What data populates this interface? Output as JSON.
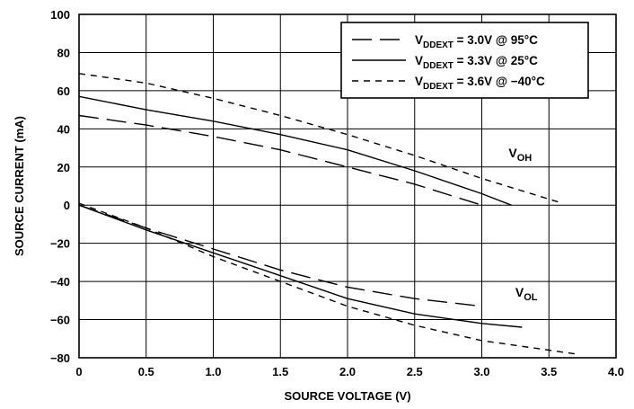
{
  "chart_data": {
    "type": "line",
    "title": "",
    "xlabel": "SOURCE VOLTAGE (V)",
    "ylabel": "SOURCE CURRENT (mA)",
    "xlim": [
      0,
      4.0
    ],
    "ylim": [
      -80,
      100
    ],
    "x_ticks": [
      "0",
      "0.5",
      "1.0",
      "1.5",
      "2.0",
      "2.5",
      "3.0",
      "3.5",
      "4.0"
    ],
    "y_ticks": [
      "100",
      "80",
      "60",
      "40",
      "20",
      "0",
      "-20",
      "-40",
      "-60",
      "-80"
    ],
    "grid": true,
    "legend_position": "top-right",
    "legend": [
      {
        "prefix": "V",
        "sub": "DDEXT",
        "suffix": " = 3.0V @ 95°C",
        "dash": "long-dash"
      },
      {
        "prefix": "V",
        "sub": "DDEXT",
        "suffix": " = 3.3V @ 25°C",
        "dash": "solid"
      },
      {
        "prefix": "V",
        "sub": "DDEXT",
        "suffix": " = 3.6V @ −40°C",
        "dash": "short-dash"
      }
    ],
    "annotations": [
      {
        "prefix": "V",
        "sub": "OH",
        "x": 3.2,
        "y": 25
      },
      {
        "prefix": "V",
        "sub": "OL",
        "x": 3.25,
        "y": -48
      }
    ],
    "series": [
      {
        "legend_index": 0,
        "group": "VOH",
        "dash": "long-dash",
        "points": [
          [
            0,
            47
          ],
          [
            0.5,
            42
          ],
          [
            1.0,
            36
          ],
          [
            1.5,
            29
          ],
          [
            2.0,
            20
          ],
          [
            2.5,
            11
          ],
          [
            3.0,
            0
          ]
        ]
      },
      {
        "legend_index": 1,
        "group": "VOH",
        "dash": "solid",
        "points": [
          [
            0,
            57
          ],
          [
            0.5,
            50
          ],
          [
            1.0,
            44
          ],
          [
            1.5,
            37
          ],
          [
            2.0,
            29
          ],
          [
            2.5,
            18
          ],
          [
            3.0,
            6
          ],
          [
            3.22,
            0
          ]
        ]
      },
      {
        "legend_index": 2,
        "group": "VOH",
        "dash": "short-dash",
        "points": [
          [
            0,
            69
          ],
          [
            0.5,
            64
          ],
          [
            1.0,
            56
          ],
          [
            1.5,
            47
          ],
          [
            2.0,
            37
          ],
          [
            2.5,
            26
          ],
          [
            3.0,
            14
          ],
          [
            3.6,
            1
          ]
        ]
      },
      {
        "legend_index": 0,
        "group": "VOL",
        "dash": "long-dash",
        "points": [
          [
            0,
            0
          ],
          [
            0.5,
            -12
          ],
          [
            1.0,
            -23
          ],
          [
            1.5,
            -34
          ],
          [
            2.0,
            -43
          ],
          [
            2.5,
            -49
          ],
          [
            3.0,
            -53
          ]
        ]
      },
      {
        "legend_index": 1,
        "group": "VOL",
        "dash": "solid",
        "points": [
          [
            0,
            0
          ],
          [
            0.5,
            -13
          ],
          [
            1.0,
            -25
          ],
          [
            1.5,
            -37
          ],
          [
            2.0,
            -49
          ],
          [
            2.5,
            -57
          ],
          [
            3.0,
            -62
          ],
          [
            3.3,
            -64
          ]
        ]
      },
      {
        "legend_index": 2,
        "group": "VOL",
        "dash": "short-dash",
        "points": [
          [
            0,
            1
          ],
          [
            0.5,
            -12
          ],
          [
            1.0,
            -27
          ],
          [
            1.5,
            -40
          ],
          [
            2.0,
            -53
          ],
          [
            2.5,
            -63
          ],
          [
            3.0,
            -71
          ],
          [
            3.5,
            -76
          ],
          [
            3.7,
            -78
          ]
        ]
      }
    ]
  }
}
